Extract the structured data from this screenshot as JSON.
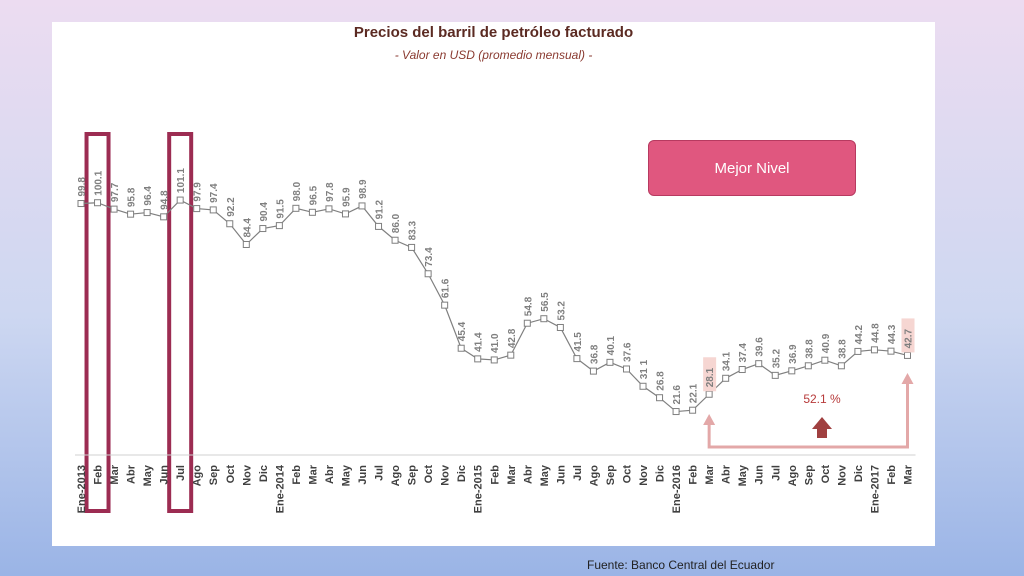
{
  "chart_data": {
    "type": "line",
    "title": "Precios del barril de petróleo facturado",
    "subtitle": "- Valor en USD (promedio mensual) -",
    "x": [
      "Ene-2013",
      "Feb",
      "Mar",
      "Abr",
      "May",
      "Jun",
      "Jul",
      "Ago",
      "Sep",
      "Oct",
      "Nov",
      "Dic",
      "Ene-2014",
      "Feb",
      "Mar",
      "Abr",
      "May",
      "Jun",
      "Jul",
      "Ago",
      "Sep",
      "Oct",
      "Nov",
      "Dic",
      "Ene-2015",
      "Feb",
      "Mar",
      "Abr",
      "May",
      "Jun",
      "Jul",
      "Ago",
      "Sep",
      "Oct",
      "Nov",
      "Dic",
      "Ene-2016",
      "Feb",
      "Mar",
      "Abr",
      "May",
      "Jun",
      "Jul",
      "Ago",
      "Sep",
      "Oct",
      "Nov",
      "Dic",
      "Ene-2017",
      "Feb",
      "Mar"
    ],
    "values": [
      99.8,
      100.1,
      97.7,
      95.8,
      96.4,
      94.8,
      101.1,
      97.9,
      97.4,
      92.2,
      84.4,
      90.4,
      91.5,
      98.0,
      96.5,
      97.8,
      95.9,
      98.9,
      91.2,
      86.0,
      83.3,
      73.4,
      61.6,
      45.4,
      41.4,
      41.0,
      42.8,
      54.8,
      56.5,
      53.2,
      41.5,
      36.8,
      40.1,
      37.6,
      31.1,
      26.8,
      21.6,
      22.1,
      28.1,
      34.1,
      37.4,
      39.6,
      35.2,
      36.9,
      38.8,
      40.9,
      38.8,
      44.2,
      44.8,
      44.3,
      42.7
    ],
    "labels": [
      "99.8",
      "100.1",
      "97.7",
      "95.8",
      "96.4",
      "94.8",
      "101.1",
      "97.9",
      "97.4",
      "92.2",
      "84.4",
      "90.4",
      "91.5",
      "98.0",
      "96.5",
      "97.8",
      "95.9",
      "98.9",
      "91.2",
      "86.0",
      "83.3",
      "73.4",
      "61.6",
      "45.4",
      "41.4",
      "41.0",
      "42.8",
      "54.8",
      "56.5",
      "53.2",
      "41.5",
      "36.8",
      "40.1",
      "37.6",
      "31 1",
      "26.8",
      "21.6",
      "22.1",
      "28.1",
      "34.1",
      "37.4",
      "39.6",
      "35.2",
      "36.9",
      "38.8",
      "40.9",
      "38.8",
      "44.2",
      "44.8",
      "44.3",
      "42.7"
    ],
    "highlighted_months": [
      "Feb",
      "Jul"
    ],
    "highlighted_labels": [
      "28.1",
      "42.7"
    ],
    "annotation": "52.1 %",
    "colors": {
      "line": "#7f7f7f",
      "label": "#7f7f7f",
      "highlight_box": "#9c2c52",
      "arrow": "#e3a8a8",
      "up_arrow": "#a04040",
      "label_bg": "#f6d6d2"
    }
  },
  "badge": "Mejor Nivel",
  "source": "Fuente: Banco Central del Ecuador"
}
